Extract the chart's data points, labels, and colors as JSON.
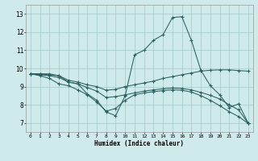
{
  "xlabel": "Humidex (Indice chaleur)",
  "bg_color": "#ceeaea",
  "grid_color": "#aacece",
  "line_color": "#2a6060",
  "xlim": [
    -0.5,
    23.5
  ],
  "ylim": [
    6.5,
    13.5
  ],
  "xticks": [
    0,
    1,
    2,
    3,
    4,
    5,
    6,
    7,
    8,
    9,
    10,
    11,
    12,
    13,
    14,
    15,
    16,
    17,
    18,
    19,
    20,
    21,
    22,
    23
  ],
  "yticks": [
    7,
    8,
    9,
    10,
    11,
    12,
    13
  ],
  "line1_x": [
    0,
    1,
    2,
    3,
    4,
    5,
    6,
    7,
    8,
    9,
    10,
    11,
    12,
    13,
    14,
    15,
    16,
    17,
    18,
    19,
    20,
    21,
    22,
    23
  ],
  "line1_y": [
    9.7,
    9.7,
    9.7,
    9.6,
    9.25,
    9.15,
    8.6,
    8.25,
    7.6,
    7.4,
    8.5,
    10.75,
    11.0,
    11.55,
    11.85,
    12.8,
    12.85,
    11.55,
    9.9,
    9.05,
    8.55,
    7.85,
    8.05,
    7.0
  ],
  "line2_x": [
    0,
    1,
    2,
    3,
    4,
    5,
    6,
    7,
    8,
    9,
    10,
    11,
    12,
    13,
    14,
    15,
    16,
    17,
    18,
    19,
    20,
    21,
    22,
    23
  ],
  "line2_y": [
    9.7,
    9.7,
    9.65,
    9.6,
    9.35,
    9.25,
    9.1,
    9.0,
    8.8,
    8.85,
    9.0,
    9.1,
    9.2,
    9.3,
    9.45,
    9.55,
    9.65,
    9.75,
    9.85,
    9.9,
    9.92,
    9.92,
    9.88,
    9.85
  ],
  "line3_x": [
    0,
    1,
    2,
    3,
    4,
    5,
    6,
    7,
    8,
    9,
    10,
    11,
    12,
    13,
    14,
    15,
    16,
    17,
    18,
    19,
    20,
    21,
    22,
    23
  ],
  "line3_y": [
    9.7,
    9.65,
    9.6,
    9.5,
    9.25,
    9.15,
    8.95,
    8.75,
    8.4,
    8.45,
    8.55,
    8.65,
    8.75,
    8.82,
    8.88,
    8.92,
    8.9,
    8.82,
    8.68,
    8.52,
    8.32,
    8.0,
    7.72,
    6.98
  ],
  "line4_x": [
    0,
    1,
    2,
    3,
    4,
    5,
    6,
    7,
    8,
    9,
    10,
    11,
    12,
    13,
    14,
    15,
    16,
    17,
    18,
    19,
    20,
    21,
    22,
    23
  ],
  "line4_y": [
    9.7,
    9.6,
    9.45,
    9.15,
    9.05,
    8.82,
    8.55,
    8.15,
    7.65,
    7.8,
    8.25,
    8.55,
    8.65,
    8.72,
    8.78,
    8.82,
    8.8,
    8.7,
    8.5,
    8.25,
    7.95,
    7.62,
    7.35,
    6.97
  ]
}
